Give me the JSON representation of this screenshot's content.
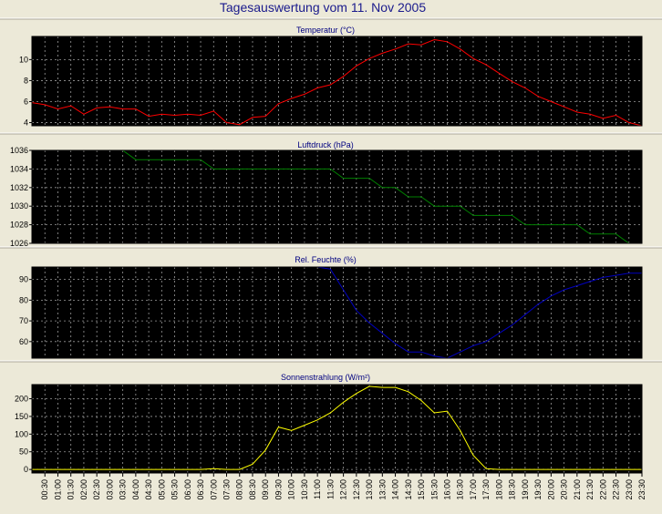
{
  "title": "Tagesauswertung vom 11. Nov 2005",
  "x_tick_labels": [
    "00:30",
    "01:00",
    "01:30",
    "02:00",
    "02:30",
    "03:00",
    "03:30",
    "04:00",
    "04:30",
    "05:00",
    "05:30",
    "06:00",
    "06:30",
    "07:00",
    "07:30",
    "08:00",
    "08:30",
    "09:00",
    "09:30",
    "10:00",
    "10:30",
    "11:00",
    "11:30",
    "12:00",
    "12:30",
    "13:00",
    "13:30",
    "14:00",
    "14:30",
    "15:00",
    "15:30",
    "16:00",
    "16:30",
    "17:00",
    "17:30",
    "18:00",
    "18:30",
    "19:00",
    "19:30",
    "20:00",
    "20:30",
    "21:00",
    "21:30",
    "22:00",
    "22:30",
    "23:00",
    "23:30"
  ],
  "chart_data": [
    {
      "type": "line",
      "title": "Temperatur (°C)",
      "color": "#ff0000",
      "ylim": [
        3.7,
        12.2
      ],
      "yticks": [
        4,
        6,
        8,
        10
      ],
      "grid": true,
      "x": [
        "00:00",
        "00:30",
        "01:00",
        "01:30",
        "02:00",
        "02:30",
        "03:00",
        "03:30",
        "04:00",
        "04:30",
        "05:00",
        "05:30",
        "06:00",
        "06:30",
        "07:00",
        "07:30",
        "08:00",
        "08:30",
        "09:00",
        "09:30",
        "10:00",
        "10:30",
        "11:00",
        "11:30",
        "12:00",
        "12:30",
        "13:00",
        "13:30",
        "14:00",
        "14:30",
        "15:00",
        "15:30",
        "16:00",
        "16:30",
        "17:00",
        "17:30",
        "18:00",
        "18:30",
        "19:00",
        "19:30",
        "20:00",
        "20:30",
        "21:00",
        "21:30",
        "22:00",
        "22:30",
        "23:00",
        "23:30"
      ],
      "values": [
        5.9,
        5.7,
        5.3,
        5.6,
        4.8,
        5.4,
        5.5,
        5.3,
        5.3,
        4.6,
        4.8,
        4.7,
        4.8,
        4.7,
        5.1,
        4.0,
        3.8,
        4.5,
        4.6,
        5.8,
        6.3,
        6.7,
        7.3,
        7.6,
        8.4,
        9.4,
        10.1,
        10.6,
        11.0,
        11.5,
        11.4,
        11.9,
        11.7,
        11.0,
        10.1,
        9.5,
        8.7,
        7.9,
        7.3,
        6.5,
        6.0,
        5.5,
        5.0,
        4.8,
        4.4,
        4.7,
        4.0,
        3.7
      ]
    },
    {
      "type": "line",
      "title": "Luftdruck (hPa)",
      "color": "#008000",
      "ylim": [
        1026,
        1036
      ],
      "yticks": [
        1026,
        1028,
        1030,
        1032,
        1034,
        1036
      ],
      "grid": true,
      "x": [
        "03:30",
        "04:00",
        "04:30",
        "05:00",
        "05:30",
        "06:00",
        "06:30",
        "07:00",
        "07:30",
        "08:00",
        "08:30",
        "09:00",
        "09:30",
        "10:00",
        "10:30",
        "11:00",
        "11:30",
        "12:00",
        "12:30",
        "13:00",
        "13:30",
        "14:00",
        "14:30",
        "15:00",
        "15:30",
        "16:00",
        "16:30",
        "17:00",
        "17:30",
        "18:00",
        "18:30",
        "19:00",
        "19:30",
        "20:00",
        "20:30",
        "21:00",
        "21:30",
        "22:00",
        "22:30",
        "23:00",
        "23:30"
      ],
      "values": [
        1036,
        1035,
        1035,
        1035,
        1035,
        1035,
        1035,
        1034,
        1034,
        1034,
        1034,
        1034,
        1034,
        1034,
        1034,
        1034,
        1034,
        1033,
        1033,
        1033,
        1032,
        1032,
        1031,
        1031,
        1030,
        1030,
        1030,
        1029,
        1029,
        1029,
        1029,
        1028,
        1028,
        1028,
        1028,
        1028,
        1027,
        1027,
        1027,
        1026,
        1026
      ]
    },
    {
      "type": "line",
      "title": "Rel. Feuchte (%)",
      "color": "#0000c0",
      "ylim": [
        52,
        96
      ],
      "yticks": [
        60,
        70,
        80,
        90
      ],
      "grid": true,
      "x": [
        "11:00",
        "11:30",
        "12:00",
        "12:30",
        "13:00",
        "13:30",
        "14:00",
        "14:30",
        "15:00",
        "15:30",
        "16:00",
        "16:30",
        "17:00",
        "17:30",
        "18:00",
        "18:30",
        "19:00",
        "19:30",
        "20:00",
        "20:30",
        "21:00",
        "21:30",
        "22:00",
        "22:30",
        "23:00",
        "23:30"
      ],
      "values": [
        96,
        95,
        85,
        75,
        69,
        64,
        59,
        55,
        55,
        53,
        52,
        55,
        58,
        60,
        64,
        68,
        73,
        78,
        82,
        85,
        87,
        89,
        91,
        92,
        93,
        93
      ]
    },
    {
      "type": "line",
      "title": "Sonnenstrahlung (W/m²)",
      "color": "#ffff00",
      "ylim": [
        -10,
        240
      ],
      "yticks": [
        0,
        50,
        100,
        150,
        200
      ],
      "grid": true,
      "x": [
        "00:00",
        "06:30",
        "07:00",
        "07:30",
        "08:00",
        "08:30",
        "09:00",
        "09:30",
        "10:00",
        "10:30",
        "11:00",
        "11:30",
        "12:00",
        "12:30",
        "13:00",
        "13:30",
        "14:00",
        "14:30",
        "15:00",
        "15:30",
        "16:00",
        "16:30",
        "17:00",
        "17:30",
        "18:00",
        "23:30"
      ],
      "values": [
        0,
        0,
        2,
        0,
        0,
        15,
        55,
        120,
        110,
        125,
        140,
        160,
        190,
        215,
        235,
        232,
        232,
        220,
        195,
        160,
        165,
        110,
        40,
        2,
        0,
        0
      ]
    }
  ]
}
